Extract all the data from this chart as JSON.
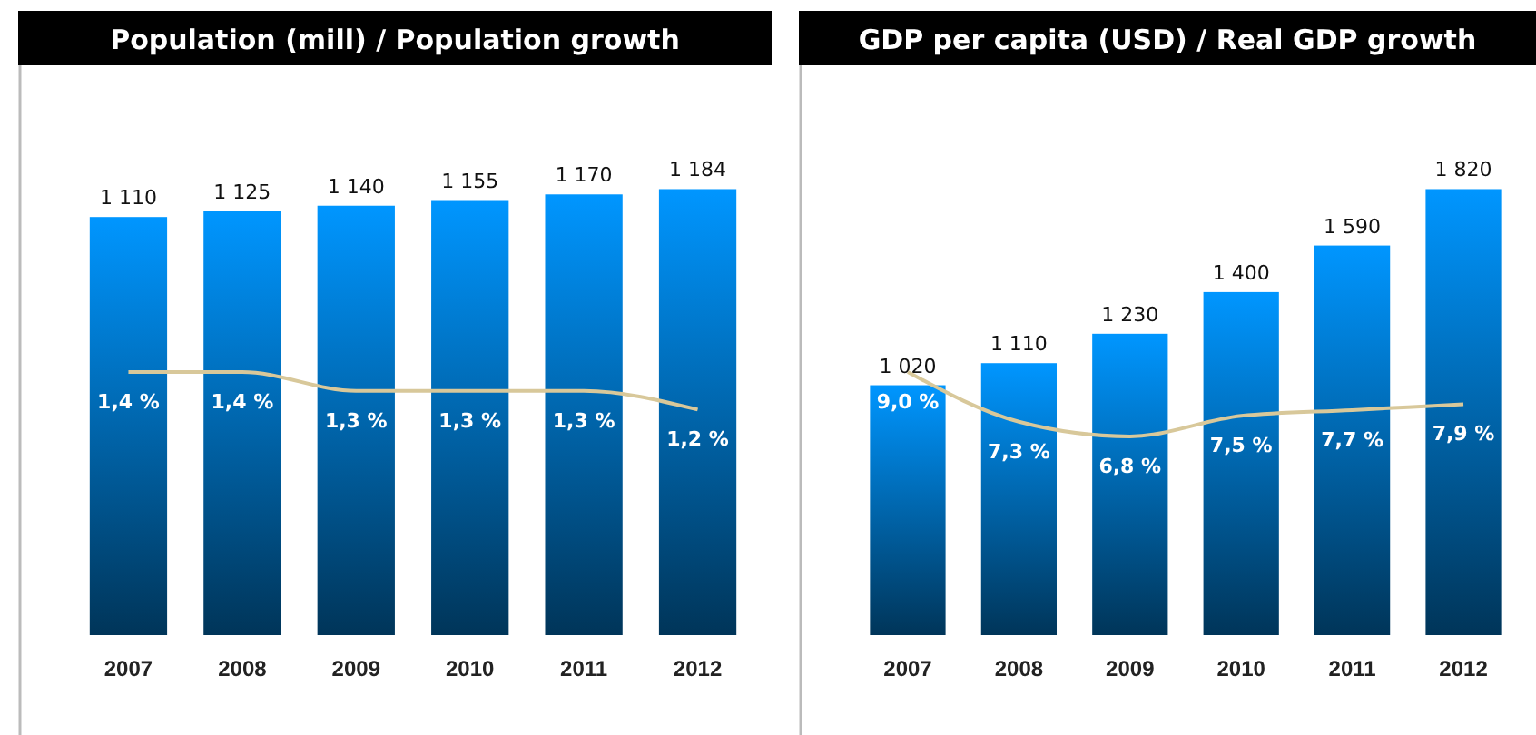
{
  "chart_data": [
    {
      "type": "bar",
      "title": "Population (mill) / Population growth",
      "categories": [
        "2007",
        "2008",
        "2009",
        "2010",
        "2011",
        "2012"
      ],
      "tick_labels": "x",
      "series": [
        {
          "color": "#0096ff",
          "values": [
            1110,
            1125,
            1140,
            1155,
            1170,
            1184
          ],
          "value_labels": [
            "1 110",
            "1 125",
            "1 140",
            "1 155",
            "1 170",
            "1 184"
          ]
        },
        {
          "type": "line",
          "axis": "y2",
          "color": "#d8c89a",
          "values": [
            1.4,
            1.4,
            1.3,
            1.3,
            1.3,
            1.2
          ],
          "value_labels": [
            "1,4 %",
            "1,4 %",
            "1,3 %",
            "1,3 %",
            "1,3 %",
            "1,2 %"
          ]
        }
      ]
    },
    {
      "type": "bar",
      "title": "GDP per capita (USD) / Real GDP growth",
      "categories": [
        "2007",
        "2008",
        "2009",
        "2010",
        "2011",
        "2012"
      ],
      "tick_labels": "x",
      "series": [
        {
          "color": "#0096ff",
          "values": [
            1020,
            1110,
            1230,
            1400,
            1590,
            1820
          ],
          "value_labels": [
            "1 020",
            "1 110",
            "1 230",
            "1 400",
            "1 590",
            "1 820"
          ]
        },
        {
          "type": "line",
          "axis": "y2",
          "color": "#d8c89a",
          "values": [
            9.0,
            7.3,
            6.8,
            7.5,
            7.7,
            7.9
          ],
          "value_labels": [
            "9,0 %",
            "7,3 %",
            "6,8 %",
            "7,5 %",
            "7,7 %",
            "7,9 %"
          ]
        }
      ]
    }
  ]
}
